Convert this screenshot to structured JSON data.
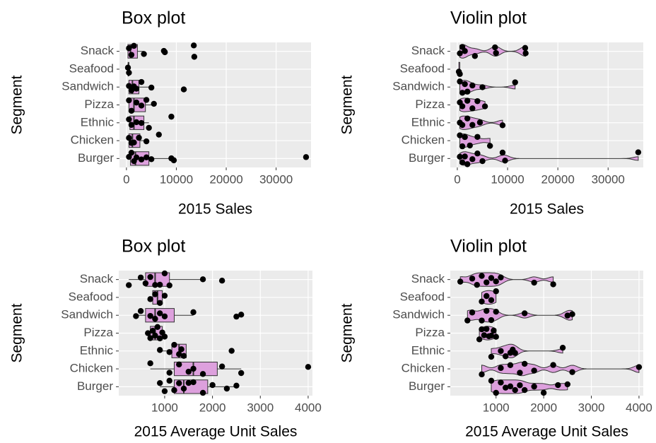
{
  "chart_data": [
    {
      "type": "box",
      "title": "Box plot",
      "xlabel": "2015 Sales",
      "ylabel": "Segment",
      "categories": [
        "Burger",
        "Chicken",
        "Ethnic",
        "Pizza",
        "Sandwich",
        "Seafood",
        "Snack"
      ],
      "xlim": [
        -1400,
        37000
      ],
      "xticks": [
        0,
        10000,
        20000,
        30000
      ],
      "fill": "#dda0dd",
      "boxes": [
        {
          "min": 500,
          "q1": 800,
          "median": 1800,
          "q3": 4500,
          "max": 9500
        },
        {
          "min": 500,
          "q1": 500,
          "median": 1200,
          "q3": 2700,
          "max": 4000
        },
        {
          "min": 500,
          "q1": 700,
          "median": 1500,
          "q3": 3500,
          "max": 4500
        },
        {
          "min": 500,
          "q1": 500,
          "median": 1500,
          "q3": 3800,
          "max": 5500
        },
        {
          "min": 500,
          "q1": 500,
          "median": 1200,
          "q3": 2500,
          "max": 5000
        },
        {
          "min": 300,
          "q1": 350,
          "median": 400,
          "q3": 450,
          "max": 500
        },
        {
          "min": 300,
          "q1": 300,
          "median": 800,
          "q3": 2200,
          "max": 3500
        }
      ],
      "points": [
        [
          500,
          1000,
          1500,
          2000,
          3000,
          4000,
          5000,
          9000,
          9500,
          36000
        ],
        [
          500,
          1000,
          1500,
          2500,
          4000,
          6500
        ],
        [
          500,
          1000,
          2000,
          3000,
          4500,
          9000
        ],
        [
          500,
          1000,
          2000,
          3000,
          4000,
          5500
        ],
        [
          500,
          1000,
          1500,
          2000,
          3000,
          5000,
          11500
        ],
        [
          300,
          500
        ],
        [
          500,
          1000,
          1500,
          3500,
          7500,
          7700,
          13500,
          13600
        ]
      ]
    },
    {
      "type": "violin",
      "title": "Violin plot",
      "xlabel": "2015 Sales",
      "ylabel": "Segment",
      "categories": [
        "Burger",
        "Chicken",
        "Ethnic",
        "Pizza",
        "Sandwich",
        "Seafood",
        "Snack"
      ],
      "xlim": [
        -1400,
        37000
      ],
      "xticks": [
        0,
        10000,
        20000,
        30000
      ],
      "fill": "#dda0dd",
      "points": [
        [
          500,
          1000,
          1500,
          2000,
          3000,
          4000,
          5000,
          9000,
          9500,
          36000
        ],
        [
          500,
          1000,
          1500,
          2500,
          4000,
          6500
        ],
        [
          500,
          1000,
          2000,
          3000,
          4500,
          9000
        ],
        [
          500,
          1000,
          2000,
          3000,
          4000,
          5500
        ],
        [
          500,
          1000,
          1500,
          2000,
          3000,
          5000,
          11500
        ],
        [
          300,
          500
        ],
        [
          500,
          1000,
          1500,
          3500,
          7500,
          7700,
          13500,
          13600
        ]
      ]
    },
    {
      "type": "box",
      "title": "Box plot",
      "xlabel": "2015 Average Unit Sales",
      "ylabel": "Segment",
      "categories": [
        "Burger",
        "Chicken",
        "Ethnic",
        "Pizza",
        "Sandwich",
        "Seafood",
        "Snack"
      ],
      "xlim": [
        40,
        4090
      ],
      "xticks": [
        1000,
        2000,
        3000,
        4000
      ],
      "fill": "#dda0dd",
      "boxes": [
        {
          "min": 900,
          "q1": 1200,
          "median": 1400,
          "q3": 1900,
          "max": 2500
        },
        {
          "min": 700,
          "q1": 1200,
          "median": 1600,
          "q3": 2100,
          "max": 2600
        },
        {
          "min": 900,
          "q1": 1150,
          "median": 1300,
          "q3": 1450,
          "max": 1450
        },
        {
          "min": 650,
          "q1": 700,
          "median": 800,
          "q3": 950,
          "max": 1000
        },
        {
          "min": 400,
          "q1": 600,
          "median": 800,
          "q3": 1200,
          "max": 1600
        },
        {
          "min": 700,
          "q1": 750,
          "median": 850,
          "q3": 950,
          "max": 1000
        },
        {
          "min": 250,
          "q1": 600,
          "median": 800,
          "q3": 1100,
          "max": 1800
        }
      ],
      "points": [
        [
          900,
          1000,
          1100,
          1200,
          1300,
          1400,
          1500,
          1600,
          1800,
          2000,
          2300,
          2500
        ],
        [
          700,
          1100,
          1300,
          1500,
          1600,
          1800,
          2200,
          2600,
          4000
        ],
        [
          900,
          1100,
          1200,
          1300,
          1350,
          1400,
          2400
        ],
        [
          650,
          700,
          750,
          800,
          850,
          900,
          950,
          1000
        ],
        [
          400,
          500,
          700,
          800,
          900,
          1000,
          1600,
          2500,
          2600
        ],
        [
          700,
          800,
          900,
          1000
        ],
        [
          250,
          500,
          600,
          700,
          800,
          900,
          1000,
          1100,
          1800,
          2200
        ]
      ]
    },
    {
      "type": "violin",
      "title": "Violin plot",
      "xlabel": "2015 Average Unit Sales",
      "ylabel": "Segment",
      "categories": [
        "Burger",
        "Chicken",
        "Ethnic",
        "Pizza",
        "Sandwich",
        "Seafood",
        "Snack"
      ],
      "xlim": [
        40,
        4090
      ],
      "xticks": [
        1000,
        2000,
        3000,
        4000
      ],
      "fill": "#dda0dd",
      "points": [
        [
          900,
          1000,
          1100,
          1200,
          1300,
          1400,
          1500,
          1600,
          1800,
          2000,
          2300,
          2500
        ],
        [
          700,
          1100,
          1300,
          1500,
          1600,
          1800,
          2200,
          2600,
          4000
        ],
        [
          900,
          1100,
          1200,
          1300,
          1350,
          1400,
          2400
        ],
        [
          650,
          700,
          750,
          800,
          850,
          900,
          950,
          1000
        ],
        [
          400,
          500,
          700,
          800,
          900,
          1000,
          1600,
          2500,
          2600
        ],
        [
          700,
          800,
          900,
          1000
        ],
        [
          250,
          500,
          600,
          700,
          800,
          900,
          1000,
          1100,
          1800,
          2200
        ]
      ]
    }
  ]
}
